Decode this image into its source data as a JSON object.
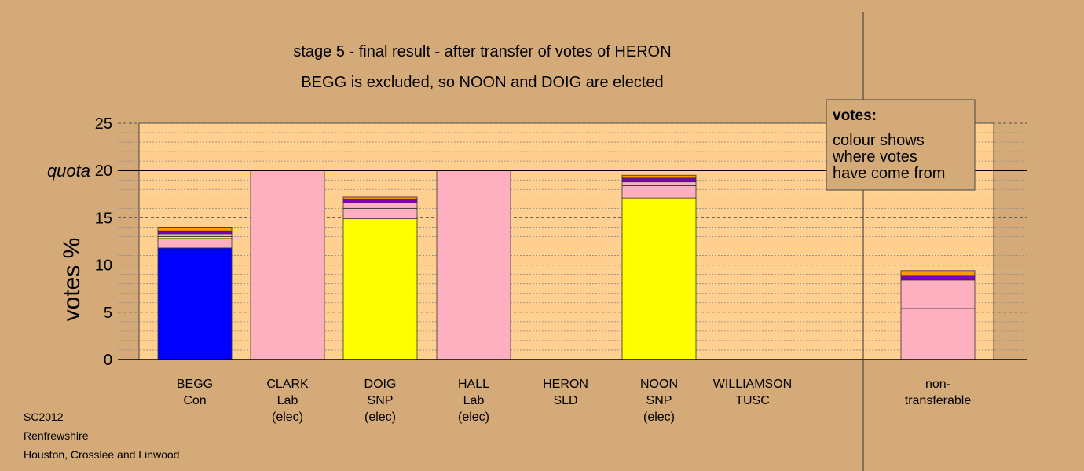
{
  "chart_data": {
    "type": "bar",
    "stacked": true,
    "title": "stage 5 - final result - after transfer of votes of HERON",
    "subtitle": "BEGG is excluded, so NOON and DOIG are elected",
    "xlabel": "",
    "ylabel": "votes %",
    "ylim": [
      0,
      25
    ],
    "yticks": [
      0,
      5,
      10,
      15,
      20,
      25
    ],
    "quota": {
      "label": "quota",
      "value": 20
    },
    "grid": true,
    "categories": [
      {
        "name": "BEGG",
        "party": "Con",
        "status": ""
      },
      {
        "name": "CLARK",
        "party": "Lab",
        "status": "(elec)"
      },
      {
        "name": "DOIG",
        "party": "SNP",
        "status": "(elec)"
      },
      {
        "name": "HALL",
        "party": "Lab",
        "status": "(elec)"
      },
      {
        "name": "HERON",
        "party": "SLD",
        "status": ""
      },
      {
        "name": "NOON",
        "party": "SNP",
        "status": "(elec)"
      },
      {
        "name": "WILLIAMSON",
        "party": "TUSC",
        "status": ""
      },
      {
        "name": "non-",
        "party": "transferable",
        "status": ""
      }
    ],
    "stacks": [
      [
        {
          "value": 11.8,
          "color": "#0000ff"
        },
        {
          "value": 1.0,
          "color": "#ffb0c0"
        },
        {
          "value": 0.2,
          "color": "#ffff00"
        },
        {
          "value": 0.3,
          "color": "#ffb0c0"
        },
        {
          "value": 0.3,
          "color": "#8000c0"
        },
        {
          "value": 0.4,
          "color": "#ff9900"
        }
      ],
      [
        {
          "value": 20.0,
          "color": "#ffb0c0"
        }
      ],
      [
        {
          "value": 14.9,
          "color": "#ffff00"
        },
        {
          "value": 1.1,
          "color": "#ffb0c0"
        },
        {
          "value": 0.6,
          "color": "#ffb0c0"
        },
        {
          "value": 0.4,
          "color": "#8000c0"
        },
        {
          "value": 0.2,
          "color": "#ff9900"
        }
      ],
      [
        {
          "value": 20.0,
          "color": "#ffb0c0"
        }
      ],
      [
        {
          "value": 0.0,
          "color": "#ffb0c0"
        }
      ],
      [
        {
          "value": 17.1,
          "color": "#ffff00"
        },
        {
          "value": 1.3,
          "color": "#ffb0c0"
        },
        {
          "value": 0.4,
          "color": "#ffb0c0"
        },
        {
          "value": 0.4,
          "color": "#8000c0"
        },
        {
          "value": 0.3,
          "color": "#ff9900"
        }
      ],
      [
        {
          "value": 0.0,
          "color": "#ffb0c0"
        }
      ],
      [
        {
          "value": 5.4,
          "color": "#ffb0c0"
        },
        {
          "value": 3.0,
          "color": "#ffb0c0"
        },
        {
          "value": 0.5,
          "color": "#8000c0"
        },
        {
          "value": 0.5,
          "color": "#ff9900"
        }
      ]
    ],
    "legend": {
      "title": "votes:",
      "lines": [
        "colour shows",
        "where votes",
        "have come from"
      ],
      "placement": "top-right"
    }
  },
  "footer": [
    "SC2012",
    "Renfrewshire",
    "Houston, Crosslee and Linwood"
  ],
  "colors": {
    "background": "#d4aa78",
    "plot_area": "#ffd090"
  }
}
